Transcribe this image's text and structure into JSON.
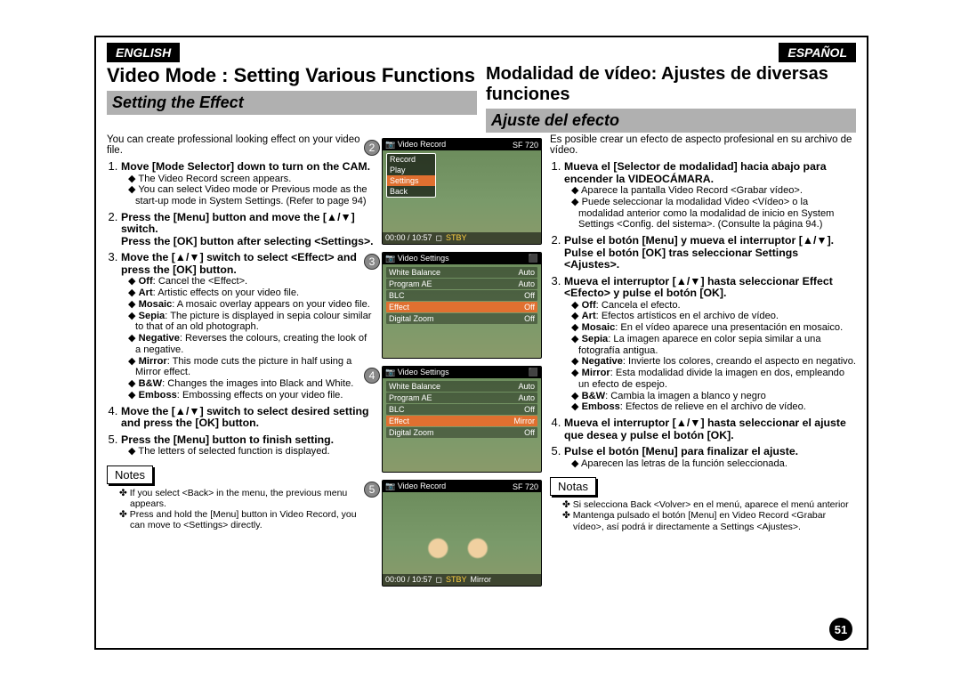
{
  "page_number": "51",
  "lang_en": "ENGLISH",
  "lang_es": "ESPAÑOL",
  "title_en": "Video Mode : Setting Various Functions",
  "title_es": "Modalidad de vídeo: Ajustes de diversas funciones",
  "section_en": "Setting the Effect",
  "section_es": "Ajuste del efecto",
  "intro_en": "You can create professional looking effect on your video file.",
  "intro_es": "Es posible crear un efecto de aspecto profesional en su archivo de vídeo.",
  "en": {
    "s1": "Move [Mode Selector] down to turn on the CAM.",
    "s1a": "The Video Record screen appears.",
    "s1b": "You can select Video mode or Previous mode as the start-up mode in System Settings. (Refer to page 94)",
    "s2": "Press the [Menu] button and move the [▲/▼] switch.\nPress the [OK] button after selecting <Settings>.",
    "s3": "Move the [▲/▼] switch to select <Effect> and press the [OK] button.",
    "eff_off": "Off",
    "eff_off_d": ": Cancel the <Effect>.",
    "eff_art": "Art",
    "eff_art_d": ": Artistic effects on your video file.",
    "eff_mos": "Mosaic",
    "eff_mos_d": ": A mosaic overlay appears on your video file.",
    "eff_sep": "Sepia",
    "eff_sep_d": ": The picture is displayed in sepia colour similar to that of an old photograph.",
    "eff_neg": "Negative",
    "eff_neg_d": ": Reverses the colours, creating the look of a negative.",
    "eff_mir": "Mirror",
    "eff_mir_d": ": This mode cuts the picture in half using a Mirror effect.",
    "eff_bw": "B&W",
    "eff_bw_d": ": Changes the images into Black and White.",
    "eff_emb": "Emboss",
    "eff_emb_d": ": Embossing effects on your video file.",
    "s4": "Move the [▲/▼] switch to select desired setting and press the [OK] button.",
    "s5": "Press the [Menu] button to finish setting.",
    "s5a": "The letters of selected function is displayed.",
    "notes_label": "Notes",
    "n1": "If you select <Back> in the menu, the previous menu appears.",
    "n2": "Press and hold the [Menu] button in Video Record, you can move to <Settings> directly."
  },
  "es": {
    "s1": "Mueva el [Selector de modalidad] hacia abajo para encender la VIDEOCÁMARA.",
    "s1a": "Aparece la pantalla Video Record <Grabar vídeo>.",
    "s1b": "Puede seleccionar la modalidad Video <Vídeo> o la modalidad anterior como la modalidad de inicio en System Settings <Config. del sistema>. (Consulte la página 94.)",
    "s2": "Pulse el botón [Menu] y mueva el interruptor [▲/▼]. Pulse el botón [OK] tras seleccionar Settings <Ajustes>.",
    "s3": "Mueva el interruptor [▲/▼] hasta seleccionar Effect <Efecto> y pulse el botón [OK].",
    "eff_off": "Off",
    "eff_off_d": ": Cancela el efecto.",
    "eff_art": "Art",
    "eff_art_d": ": Efectos artísticos en el archivo de vídeo.",
    "eff_mos": "Mosaic",
    "eff_mos_d": ": En el vídeo aparece una presentación en mosaico.",
    "eff_sep": "Sepia",
    "eff_sep_d": ": La imagen aparece en color sepia similar a una fotografía antigua.",
    "eff_neg": "Negative",
    "eff_neg_d": ": Invierte los colores, creando el aspecto en negativo.",
    "eff_mir": "Mirror",
    "eff_mir_d": ": Esta modalidad divide la imagen en dos, empleando un efecto de espejo.",
    "eff_bw": "B&W",
    "eff_bw_d": ": Cambia la imagen a blanco y negro",
    "eff_emb": "Emboss",
    "eff_emb_d": ": Efectos de relieve en el archivo de vídeo.",
    "s4": "Mueva el interruptor [▲/▼] hasta seleccionar el ajuste que desea y pulse el botón [OK].",
    "s5": "Pulse el botón [Menu] para finalizar el ajuste.",
    "s5a": "Aparecen las letras de la función seleccionada.",
    "notes_label": "Notas",
    "n1": "Si selecciona Back <Volver> en el menú, aparece el menú anterior",
    "n2": "Mantenga pulsado el botón [Menu] en Video Record <Grabar vídeo>, así podrá ir directamente a Settings <Ajustes>."
  },
  "screens": {
    "s2": {
      "num": "2",
      "title": "Video Record",
      "badges": "SF  720",
      "menu": [
        "Record",
        "Play",
        "Settings",
        "Back"
      ],
      "sel_idx": 2,
      "status": "00:00 / 10:57",
      "stby": "STBY"
    },
    "s3": {
      "num": "3",
      "title": "Video Settings",
      "rows": [
        [
          "White Balance",
          "Auto"
        ],
        [
          "Program AE",
          "Auto"
        ],
        [
          "BLC",
          "Off"
        ],
        [
          "Effect",
          "Off"
        ],
        [
          "Digital Zoom",
          "Off"
        ]
      ],
      "sel_idx": 3
    },
    "s4": {
      "num": "4",
      "title": "Video Settings",
      "rows": [
        [
          "White Balance",
          "Auto"
        ],
        [
          "Program AE",
          "Auto"
        ],
        [
          "BLC",
          "Off"
        ],
        [
          "Effect",
          "Mirror"
        ],
        [
          "Digital Zoom",
          "Off"
        ]
      ],
      "sel_idx": 3
    },
    "s5": {
      "num": "5",
      "title": "Video Record",
      "badges": "SF  720",
      "status": "00:00 / 10:57",
      "stby": "STBY",
      "extra": "Mirror"
    }
  }
}
